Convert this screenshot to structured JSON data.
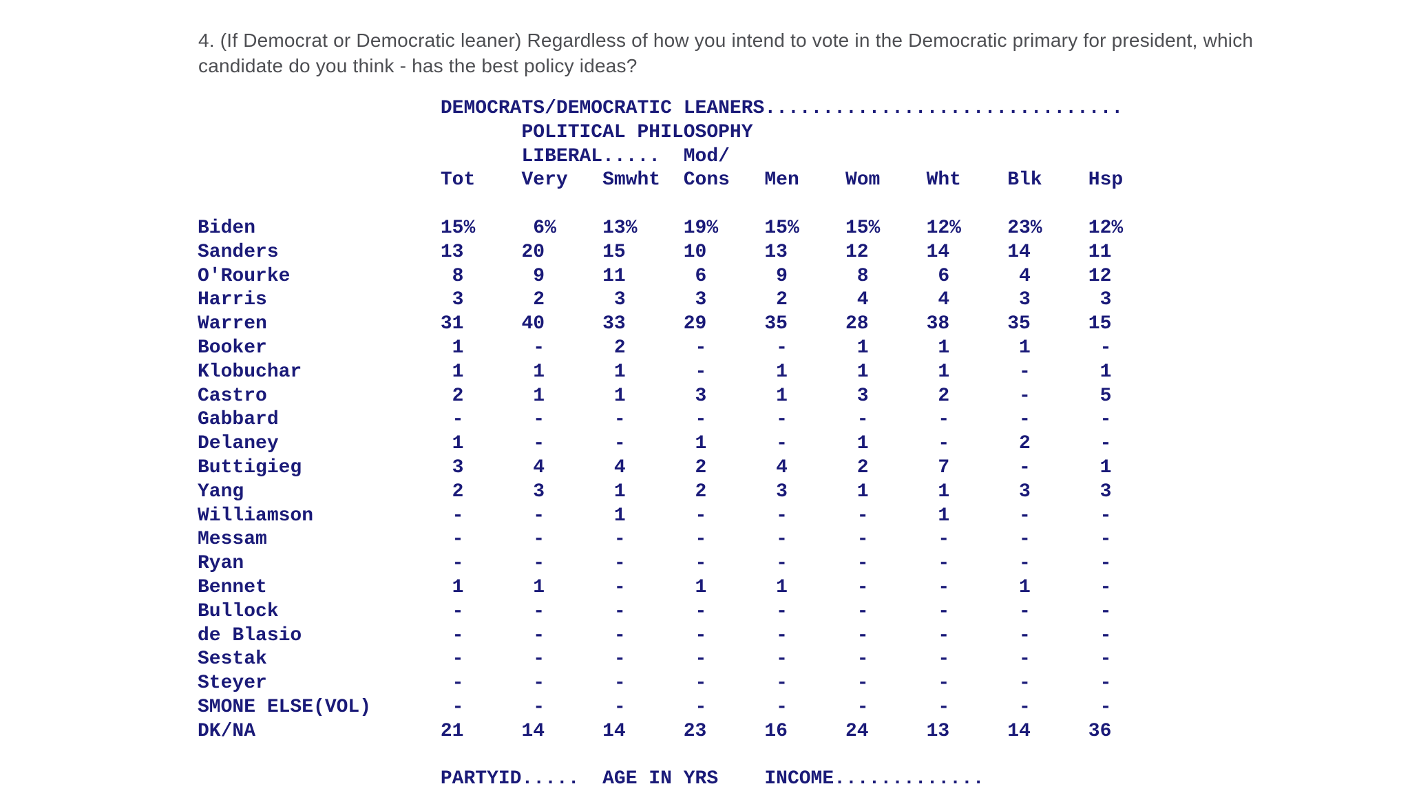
{
  "question": {
    "line1": "4. (If Democrat or Democratic leaner) Regardless of how you intend to vote in the Democratic primary for president, which",
    "line2": "candidate do you think - has the best policy ideas?"
  },
  "table": {
    "group_header": "DEMOCRATS/DEMOCRATIC LEANERS...............................",
    "philosophy_header": "POLITICAL PHILOSOPHY",
    "liberal_header": "LIBERAL.....",
    "mod_header": "Mod/",
    "columns": [
      "Tot",
      "Very",
      "Smwht",
      "Cons",
      "Men",
      "Wom",
      "Wht",
      "Blk",
      "Hsp"
    ],
    "rows": [
      {
        "label": "Biden",
        "values": [
          "15%",
          "6%",
          "13%",
          "19%",
          "15%",
          "15%",
          "12%",
          "23%",
          "12%"
        ]
      },
      {
        "label": "Sanders",
        "values": [
          "13",
          "20",
          "15",
          "10",
          "13",
          "12",
          "14",
          "14",
          "11"
        ]
      },
      {
        "label": "O'Rourke",
        "values": [
          "8",
          "9",
          "11",
          "6",
          "9",
          "8",
          "6",
          "4",
          "12"
        ]
      },
      {
        "label": "Harris",
        "values": [
          "3",
          "2",
          "3",
          "3",
          "2",
          "4",
          "4",
          "3",
          "3"
        ]
      },
      {
        "label": "Warren",
        "values": [
          "31",
          "40",
          "33",
          "29",
          "35",
          "28",
          "38",
          "35",
          "15"
        ]
      },
      {
        "label": "Booker",
        "values": [
          "1",
          "-",
          "2",
          "-",
          "-",
          "1",
          "1",
          "1",
          "-"
        ]
      },
      {
        "label": "Klobuchar",
        "values": [
          "1",
          "1",
          "1",
          "-",
          "1",
          "1",
          "1",
          "-",
          "1"
        ]
      },
      {
        "label": "Castro",
        "values": [
          "2",
          "1",
          "1",
          "3",
          "1",
          "3",
          "2",
          "-",
          "5"
        ]
      },
      {
        "label": "Gabbard",
        "values": [
          "-",
          "-",
          "-",
          "-",
          "-",
          "-",
          "-",
          "-",
          "-"
        ]
      },
      {
        "label": "Delaney",
        "values": [
          "1",
          "-",
          "-",
          "1",
          "-",
          "1",
          "-",
          "2",
          "-"
        ]
      },
      {
        "label": "Buttigieg",
        "values": [
          "3",
          "4",
          "4",
          "2",
          "4",
          "2",
          "7",
          "-",
          "1"
        ]
      },
      {
        "label": "Yang",
        "values": [
          "2",
          "3",
          "1",
          "2",
          "3",
          "1",
          "1",
          "3",
          "3"
        ]
      },
      {
        "label": "Williamson",
        "values": [
          "-",
          "-",
          "1",
          "-",
          "-",
          "-",
          "1",
          "-",
          "-"
        ]
      },
      {
        "label": "Messam",
        "values": [
          "-",
          "-",
          "-",
          "-",
          "-",
          "-",
          "-",
          "-",
          "-"
        ]
      },
      {
        "label": "Ryan",
        "values": [
          "-",
          "-",
          "-",
          "-",
          "-",
          "-",
          "-",
          "-",
          "-"
        ]
      },
      {
        "label": "Bennet",
        "values": [
          "1",
          "1",
          "-",
          "1",
          "1",
          "-",
          "-",
          "1",
          "-"
        ]
      },
      {
        "label": "Bullock",
        "values": [
          "-",
          "-",
          "-",
          "-",
          "-",
          "-",
          "-",
          "-",
          "-"
        ]
      },
      {
        "label": "de Blasio",
        "values": [
          "-",
          "-",
          "-",
          "-",
          "-",
          "-",
          "-",
          "-",
          "-"
        ]
      },
      {
        "label": "Sestak",
        "values": [
          "-",
          "-",
          "-",
          "-",
          "-",
          "-",
          "-",
          "-",
          "-"
        ]
      },
      {
        "label": "Steyer",
        "values": [
          "-",
          "-",
          "-",
          "-",
          "-",
          "-",
          "-",
          "-",
          "-"
        ]
      },
      {
        "label": "SMONE ELSE(VOL)",
        "values": [
          "-",
          "-",
          "-",
          "-",
          "-",
          "-",
          "-",
          "-",
          "-"
        ]
      },
      {
        "label": "DK/NA",
        "values": [
          "21",
          "14",
          "14",
          "23",
          "16",
          "24",
          "13",
          "14",
          "36"
        ]
      }
    ],
    "footer": {
      "partyid": "PARTYID.....",
      "age": "AGE IN YRS",
      "income": "INCOME............."
    }
  },
  "colors": {
    "table_text": "#1a1a78",
    "question_text": "#4d4e52",
    "background": "#ffffff"
  }
}
